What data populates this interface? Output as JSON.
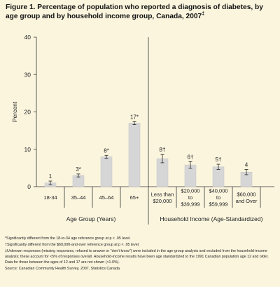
{
  "chart_data": {
    "type": "bar",
    "title": "Figure 1. Percentage of population who reported a diagnosis of diabetes, by age group and by household income group, Canada, 2007",
    "title_sup": "‡",
    "ylabel": "Percent",
    "ylim": [
      0,
      40
    ],
    "yticks": [
      "0",
      "10",
      "20",
      "30",
      "40"
    ],
    "grid": false,
    "panels": [
      {
        "name": "Age Group (Years)",
        "categories": [
          [
            "18-34"
          ],
          [
            "35–44"
          ],
          [
            "45–64"
          ],
          [
            "65+"
          ]
        ],
        "values": [
          1,
          3,
          8,
          17
        ],
        "errors": [
          0.5,
          0.4,
          0.4,
          0.4
        ],
        "data_labels": [
          "1",
          "3*",
          "8*",
          "17*"
        ]
      },
      {
        "name": "Household Income (Age-Standardized)",
        "categories": [
          [
            "Less than",
            "$20,000"
          ],
          [
            "$20,000",
            "to",
            "$39,999"
          ],
          [
            "$40,000",
            "to",
            "$59,999"
          ],
          [
            "$60,000",
            "and Over"
          ]
        ],
        "values": [
          7.5,
          5.8,
          5.3,
          3.9
        ],
        "errors": [
          1.1,
          0.9,
          0.7,
          0.7
        ],
        "data_labels": [
          "8†",
          "6†",
          "5†",
          "4"
        ]
      }
    ],
    "colors": {
      "bar": "#d6d6d6",
      "bar_stroke": "#c4c4c4",
      "axis": "#333333",
      "background": "#fbf5de"
    }
  },
  "notes": {
    "sig1": "*Significantly different from the 18-to-34 age reference group at p < .05 level.",
    "sig2": "†Significantly different from the $60,000-and-over reference group at p < .05 level.",
    "unknown": "‡Unknown responses (missing responses, refused to answer or “don’t know”) were included in the age-group analysis and excluded from the household-income analysis; these account for <5% of responses overall. Household-income results have been age standardized to the 1991 Canadian population age 12 and older. Data for those between the ages of 12 and 17 are not shown (<1.0%).",
    "source": "Source: Canadian Community Health Survey, 2007, Statistics Canada."
  }
}
